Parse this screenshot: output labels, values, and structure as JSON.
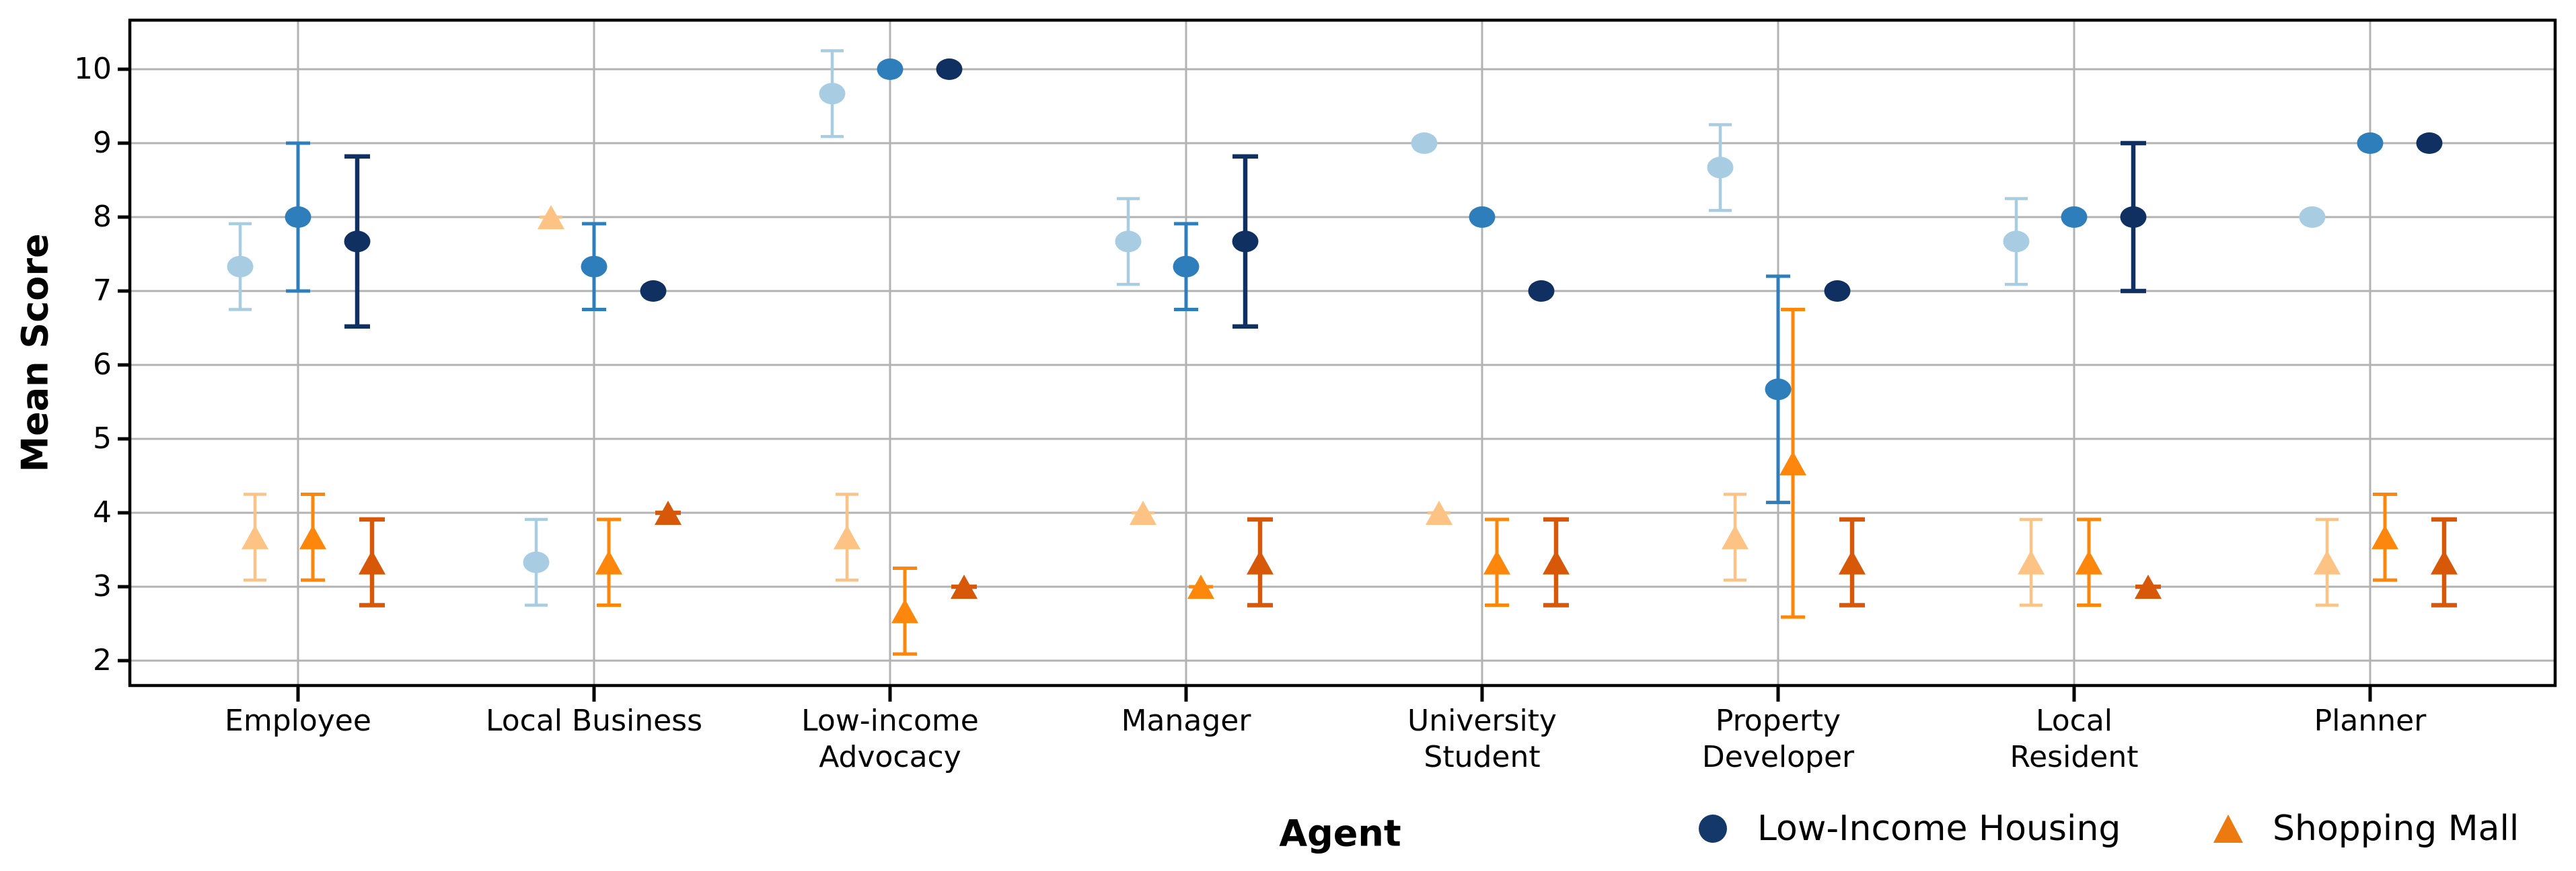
{
  "chart_data": {
    "type": "scatter",
    "title": "",
    "xlabel": "Agent",
    "ylabel": "Mean Score",
    "ylim": [
      1.66,
      10.66
    ],
    "yticks": [
      10,
      9,
      8,
      7,
      6,
      5,
      4,
      3,
      2
    ],
    "grid": true,
    "legend_position": "bottom-right",
    "error_bar_meaning": "vertical bars span mean minus/plus one standard deviation; flat stub shown when deviation is zero",
    "categories": [
      "Employee",
      "Local Business",
      "Low-income Advocacy",
      "Manager",
      "University Student",
      "Property Developer",
      "Local Resident",
      "Planner"
    ],
    "category_label_lines": [
      [
        "Employee"
      ],
      [
        "Local Business"
      ],
      [
        "Low-income",
        "Advocacy"
      ],
      [
        "Manager"
      ],
      [
        "University",
        "Student"
      ],
      [
        "Property",
        "Developer"
      ],
      [
        "Local",
        "Resident"
      ],
      [
        "Planner"
      ]
    ],
    "colors": {
      "grid": "#b3b3b3",
      "spine": "#000000",
      "text": "#000000"
    },
    "legend": [
      {
        "label": "Low-Income Housing",
        "marker": "circle",
        "color": "#143869"
      },
      {
        "label": "Shopping Mall",
        "marker": "triangle",
        "color": "#ed7a10"
      }
    ],
    "series": [
      {
        "name": "Low-Income Housing (light shade)",
        "marker": "circle",
        "color": "#a8cde2",
        "means": [
          7.33,
          3.33,
          9.67,
          7.67,
          9.0,
          8.67,
          7.67,
          8.0
        ],
        "sds": [
          0.58,
          0.58,
          0.58,
          0.58,
          0.0,
          0.58,
          0.58,
          0.0
        ]
      },
      {
        "name": "Low-Income Housing (medium shade)",
        "marker": "circle",
        "color": "#2e7ebc",
        "means": [
          8.0,
          7.33,
          10.0,
          7.33,
          8.0,
          5.67,
          8.0,
          9.0
        ],
        "sds": [
          1.0,
          0.58,
          0.0,
          0.58,
          0.0,
          1.53,
          0.0,
          0.0
        ]
      },
      {
        "name": "Low-Income Housing (dark shade)",
        "marker": "circle",
        "color": "#0f3060",
        "means": [
          7.67,
          7.0,
          10.0,
          7.67,
          7.0,
          7.0,
          8.0,
          9.0
        ],
        "sds": [
          1.15,
          0.0,
          0.0,
          1.15,
          0.0,
          0.0,
          1.0,
          0.0
        ]
      },
      {
        "name": "Shopping Mall (light shade)",
        "marker": "triangle",
        "color": "#fdc384",
        "means": [
          3.67,
          8.0,
          3.67,
          4.0,
          4.0,
          3.67,
          3.33,
          3.33
        ],
        "sds": [
          0.58,
          0.0,
          0.58,
          0.0,
          0.0,
          0.58,
          0.58,
          0.58
        ]
      },
      {
        "name": "Shopping Mall (medium shade)",
        "marker": "triangle",
        "color": "#fd860c",
        "means": [
          3.67,
          3.33,
          2.67,
          3.0,
          3.33,
          4.67,
          3.33,
          3.67
        ],
        "sds": [
          0.58,
          0.58,
          0.58,
          0.0,
          0.58,
          2.08,
          0.58,
          0.58
        ]
      },
      {
        "name": "Shopping Mall (dark shade)",
        "marker": "triangle",
        "color": "#d65808",
        "means": [
          3.33,
          4.0,
          3.0,
          3.33,
          3.33,
          3.33,
          3.0,
          3.33
        ],
        "sds": [
          0.58,
          0.0,
          0.0,
          0.58,
          0.58,
          0.58,
          0.0,
          0.58
        ]
      }
    ]
  }
}
